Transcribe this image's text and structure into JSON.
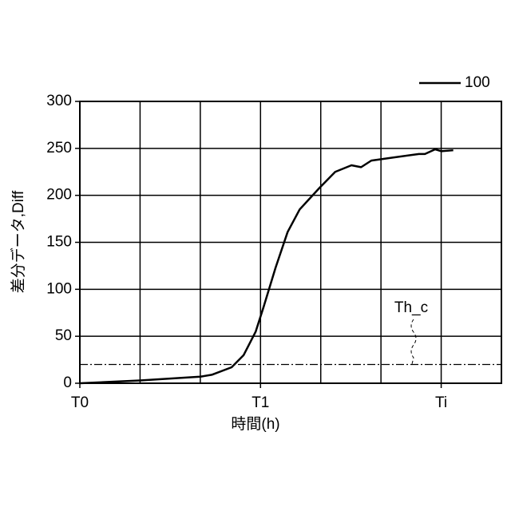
{
  "chart_data": {
    "type": "line",
    "x_label": "時間(h)",
    "y_label": "差分データ,Diff",
    "xlim": [
      0,
      7
    ],
    "xticks": [
      {
        "value": 0,
        "label": "T0"
      },
      {
        "value": 1,
        "label": null
      },
      {
        "value": 2,
        "label": null
      },
      {
        "value": 3,
        "label": "T1"
      },
      {
        "value": 4,
        "label": null
      },
      {
        "value": 5,
        "label": null
      },
      {
        "value": 6,
        "label": "Ti"
      },
      {
        "value": 7,
        "label": null
      }
    ],
    "ylim": [
      0,
      300
    ],
    "yticks": [
      0,
      50,
      100,
      150,
      200,
      250,
      300
    ],
    "grid": true,
    "legend": "top-right",
    "x": [
      0,
      1,
      2,
      2.19,
      2.52,
      2.72,
      2.92,
      3.05,
      3.25,
      3.45,
      3.65,
      3.98,
      4.24,
      4.51,
      4.67,
      4.84,
      5.17,
      5.63,
      5.73,
      5.9,
      6.0,
      6.2
    ],
    "series": [
      {
        "name": "100",
        "color": "#000000",
        "values": [
          0,
          3,
          7,
          9,
          17,
          30,
          55,
          81,
          123,
          161,
          185,
          208,
          225,
          232,
          230,
          237,
          240,
          244,
          244,
          249,
          247,
          248
        ]
      }
    ],
    "threshold": {
      "value": 20,
      "label": "Th_c"
    }
  }
}
